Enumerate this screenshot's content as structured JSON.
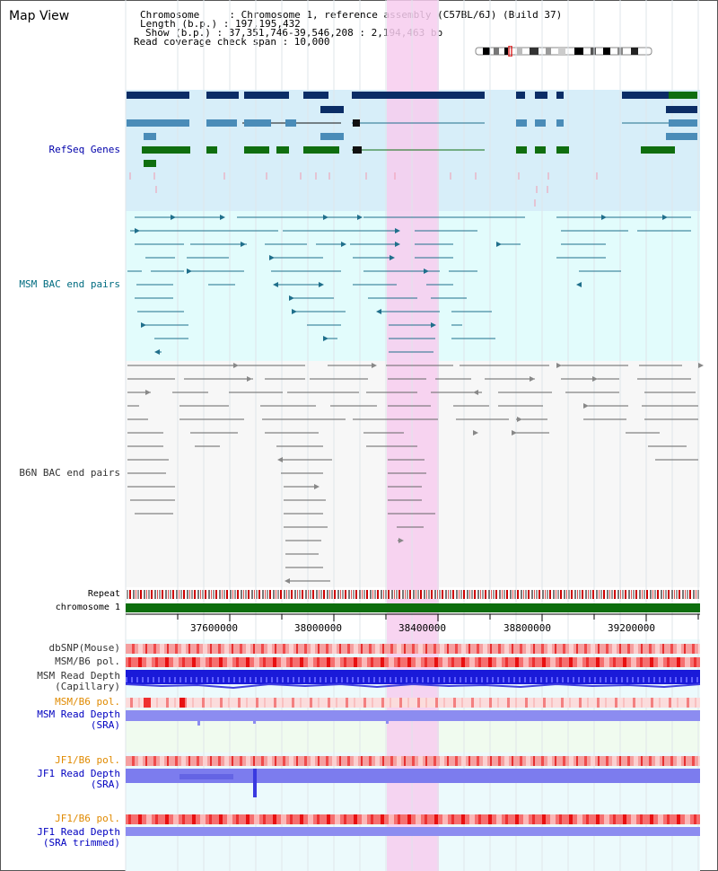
{
  "view": {
    "title": "Map View"
  },
  "info": {
    "chromosome_label": "Chromosome     : Chromosome 1, reference assembly (C57BL/6J) (Build 37)",
    "length_label": "Length (b.p.) : 197,195,432",
    "show_label": "Show (b.p.) : 37,351,746-39,546,208 : 2,194,463 bp",
    "coverage_label": "Read coverage check span : 10,000"
  },
  "tracks": {
    "refseq": "RefSeq Genes",
    "msm_bac": "MSM BAC end pairs",
    "b6n_bac": "B6N BAC end pairs",
    "repeat": "Repeat",
    "chromosome": "chromosome 1",
    "dbsnp": "dbSNP(Mouse)",
    "msm_b6_pol_1": "MSM/B6 pol.",
    "msm_depth_cap_1": "MSM Read Depth",
    "msm_depth_cap_2": "(Capillary)",
    "msm_b6_pol_2": "MSM/B6 pol.",
    "msm_depth_sra_1": "MSM Read Depth",
    "msm_depth_sra_2": "(SRA)",
    "jf1_pol_1": "JF1/B6 pol.",
    "jf1_depth_sra_1": "JF1 Read Depth",
    "jf1_depth_sra_2": "(SRA)",
    "jf1_pol_2": "JF1/B6 pol.",
    "jf1_depth_trim_1": "JF1 Read Depth",
    "jf1_depth_trim_2": "(SRA trimmed)"
  },
  "axis": {
    "ticks": [
      "37600000",
      "38000000",
      "38400000",
      "38800000",
      "39200000"
    ]
  },
  "colors": {
    "refseq_bg": "#d7eef9",
    "msm_bg": "#e2fcfc",
    "b6n_bg": "#f7f7f7",
    "highlight": "#f7cdef",
    "navy_gene": "#0b2d66",
    "mid_gene": "#4a8cb8",
    "green_gene": "#0f6e0f",
    "msm_line": "#1f6f8b",
    "b6n_line": "#555555",
    "chrom_bar": "#0d6e0d"
  }
}
